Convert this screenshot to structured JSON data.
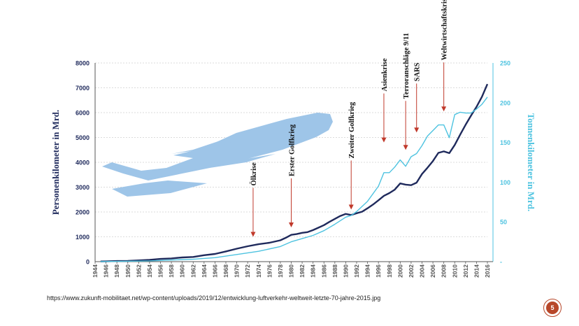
{
  "slide": {
    "source_url": "https://www.zukunft-mobilitaet.net/wp-content/uploads/2019/12/entwicklung-luftverkehr-weltweit-letzte-70-jahre-2015.jpg",
    "page_number": "5"
  },
  "chart_data": {
    "type": "line",
    "title": "",
    "ylabel": "Personenkilometer in Mrd.",
    "y2label": "Tonnenkilometer in Mrd.",
    "xlim": [
      1944,
      2016
    ],
    "ylim": [
      0,
      8000
    ],
    "y2lim": [
      0,
      250
    ],
    "yticks": [
      "0",
      "1000",
      "2000",
      "3000",
      "4000",
      "5000",
      "6000",
      "7000",
      "8000"
    ],
    "y2ticks": [
      "0",
      "50",
      "100",
      "150",
      "200",
      "250"
    ],
    "xticks": [
      "1944",
      "1946",
      "1948",
      "1950",
      "1952",
      "1954",
      "1956",
      "1958",
      "1960",
      "1962",
      "1964",
      "1966",
      "1968",
      "1970",
      "1972",
      "1974",
      "1976",
      "1978",
      "1980",
      "1982",
      "1984",
      "1986",
      "1988",
      "1990",
      "1992",
      "1994",
      "1996",
      "1998",
      "2000",
      "2002",
      "2004",
      "2006",
      "2008",
      "2010",
      "2012",
      "2014",
      "2016"
    ],
    "colors": {
      "passenger": "#1f2a5c",
      "freight": "#4ec3e0",
      "arrow": "#c0392b",
      "plane": "#9ec5e8",
      "y2axis": "#4ec3e0"
    },
    "series": [
      {
        "name": "Personenkilometer in Mrd.",
        "axis": "left",
        "x": [
          1945,
          1946,
          1948,
          1950,
          1952,
          1954,
          1956,
          1958,
          1960,
          1962,
          1964,
          1966,
          1968,
          1970,
          1972,
          1974,
          1976,
          1978,
          1979,
          1980,
          1981,
          1982,
          1983,
          1984,
          1985,
          1986,
          1987,
          1988,
          1989,
          1990,
          1991,
          1992,
          1993,
          1994,
          1995,
          1996,
          1997,
          1998,
          1999,
          2000,
          2001,
          2002,
          2003,
          2004,
          2005,
          2006,
          2007,
          2008,
          2009,
          2010,
          2011,
          2012,
          2013,
          2014,
          2015,
          2016
        ],
        "y": [
          8,
          12,
          24,
          28,
          50,
          70,
          110,
          130,
          170,
          190,
          260,
          310,
          410,
          520,
          620,
          700,
          760,
          860,
          960,
          1080,
          1110,
          1160,
          1190,
          1270,
          1370,
          1470,
          1600,
          1720,
          1840,
          1920,
          1880,
          1950,
          2010,
          2150,
          2300,
          2470,
          2650,
          2760,
          2900,
          3150,
          3100,
          3080,
          3180,
          3530,
          3780,
          4050,
          4380,
          4440,
          4370,
          4700,
          5110,
          5510,
          5880,
          6230,
          6640,
          7150
        ]
      },
      {
        "name": "Tonnenkilometer in Mrd.",
        "axis": "right",
        "x": [
          1945,
          1950,
          1954,
          1958,
          1962,
          1966,
          1970,
          1974,
          1978,
          1980,
          1982,
          1984,
          1986,
          1988,
          1990,
          1991,
          1992,
          1994,
          1996,
          1997,
          1998,
          1999,
          2000,
          2001,
          2002,
          2003,
          2004,
          2005,
          2006,
          2007,
          2008,
          2009,
          2010,
          2011,
          2012,
          2013,
          2014,
          2015,
          2016
        ],
        "y": [
          0.2,
          0.5,
          1,
          2,
          3,
          5,
          9,
          13,
          19,
          25,
          29,
          33,
          39,
          47,
          56,
          58,
          63,
          76,
          95,
          112,
          112,
          119,
          128,
          120,
          132,
          136,
          146,
          158,
          165,
          172,
          172,
          156,
          185,
          188,
          187,
          187,
          192,
          198,
          207
        ]
      }
    ],
    "annotations": [
      {
        "year": 1973,
        "label": "Ölkrise",
        "value": 1000
      },
      {
        "year": 1980,
        "label": "Erster Golfkrieg",
        "value": 1380
      },
      {
        "year": 1991,
        "label": "Zweiter Golfkrieg",
        "value": 2100
      },
      {
        "year": 1997,
        "label": "Asienkrise",
        "value": 4800
      },
      {
        "year": 2001,
        "label": "Terroranschläge 9/11",
        "value": 4500
      },
      {
        "year": 2003,
        "label": "SARS",
        "value": 5200
      },
      {
        "year": 2008,
        "label": "Weltwirtschaftskrise",
        "value": 6050
      }
    ]
  }
}
